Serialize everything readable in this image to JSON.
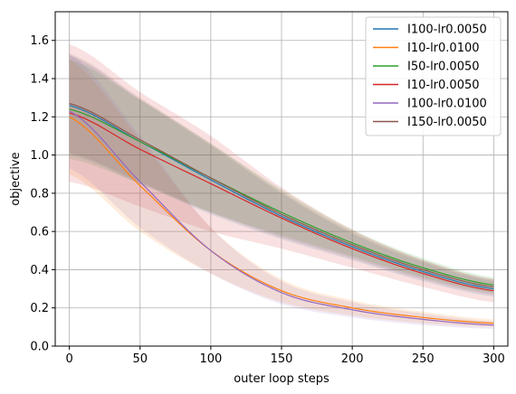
{
  "chart_data": {
    "type": "line",
    "xlabel": "outer loop steps",
    "ylabel": "objective",
    "xlim": [
      -10,
      310
    ],
    "ylim": [
      0.0,
      1.75
    ],
    "xticks": [
      0,
      50,
      100,
      150,
      200,
      250,
      300
    ],
    "yticks": [
      0.0,
      0.2,
      0.4,
      0.6,
      0.8,
      1.0,
      1.2,
      1.4,
      1.6
    ],
    "xtick_labels": [
      "0",
      "50",
      "100",
      "150",
      "200",
      "250",
      "300"
    ],
    "ytick_labels": [
      "0.0",
      "0.2",
      "0.4",
      "0.6",
      "0.8",
      "1.0",
      "1.2",
      "1.4",
      "1.6"
    ],
    "grid": true,
    "legend_position": "top-right",
    "x": [
      0,
      50,
      100,
      150,
      200,
      250,
      300
    ],
    "series": [
      {
        "name": "I100-lr0.0050",
        "color": "#1f77b4",
        "values": [
          1.26,
          1.07,
          0.87,
          0.68,
          0.52,
          0.39,
          0.3
        ],
        "band": [
          0.26,
          0.22,
          0.18,
          0.12,
          0.07,
          0.05,
          0.04
        ]
      },
      {
        "name": "I10-lr0.0100",
        "color": "#ff7f0e",
        "values": [
          1.2,
          0.84,
          0.5,
          0.29,
          0.2,
          0.15,
          0.12
        ],
        "band": [
          0.3,
          0.24,
          0.12,
          0.06,
          0.04,
          0.03,
          0.02
        ]
      },
      {
        "name": "I50-lr0.0050",
        "color": "#2ca02c",
        "values": [
          1.24,
          1.07,
          0.88,
          0.7,
          0.54,
          0.41,
          0.32
        ],
        "band": [
          0.26,
          0.22,
          0.18,
          0.12,
          0.07,
          0.05,
          0.04
        ]
      },
      {
        "name": "I10-lr0.0050",
        "color": "#d62728",
        "values": [
          1.22,
          1.03,
          0.85,
          0.67,
          0.51,
          0.38,
          0.29
        ],
        "band": [
          0.36,
          0.3,
          0.25,
          0.16,
          0.1,
          0.07,
          0.06
        ]
      },
      {
        "name": "I100-lr0.0100",
        "color": "#9467bd",
        "values": [
          1.23,
          0.86,
          0.5,
          0.28,
          0.19,
          0.14,
          0.11
        ],
        "band": [
          0.3,
          0.24,
          0.12,
          0.06,
          0.04,
          0.03,
          0.02
        ]
      },
      {
        "name": "I150-lr0.0050",
        "color": "#8c564b",
        "values": [
          1.27,
          1.08,
          0.88,
          0.69,
          0.53,
          0.4,
          0.31
        ],
        "band": [
          0.26,
          0.22,
          0.18,
          0.12,
          0.07,
          0.05,
          0.04
        ]
      }
    ]
  }
}
